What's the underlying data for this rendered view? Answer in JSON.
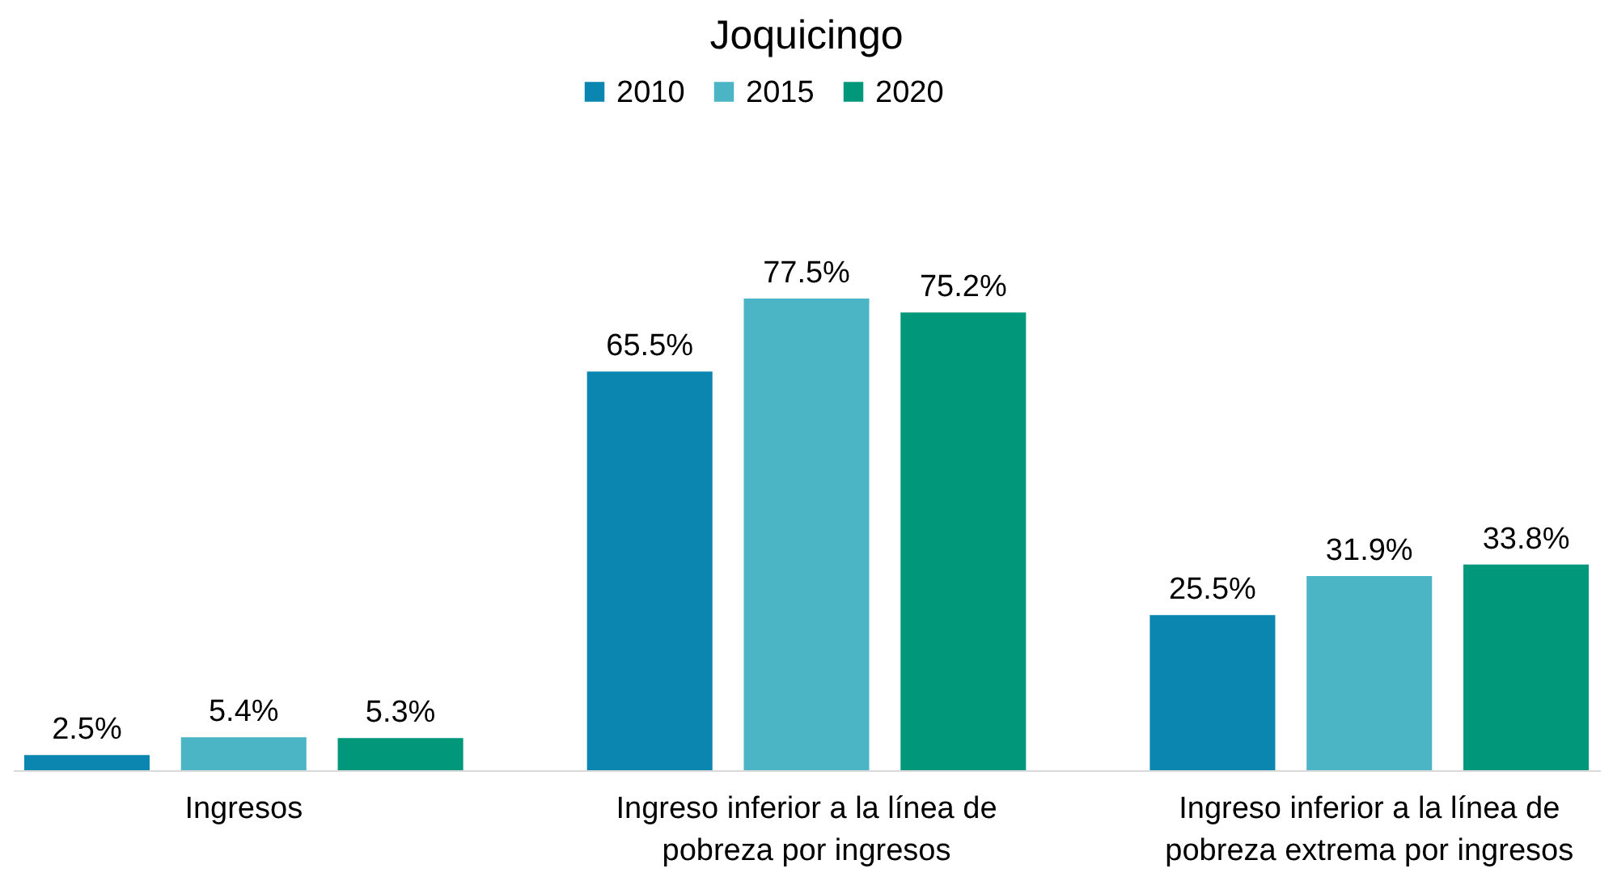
{
  "chart_data": {
    "type": "bar",
    "title": "Joquicingo",
    "categories": [
      "Ingresos",
      "Ingreso inferior a la línea de pobreza por ingresos",
      "Ingreso inferior a la línea de pobreza extrema por ingresos"
    ],
    "series": [
      {
        "name": "2010",
        "color": "#0b86b0",
        "values": [
          2.5,
          65.5,
          25.5
        ],
        "value_labels": [
          "2.5%",
          "65.5%",
          "25.5%"
        ]
      },
      {
        "name": "2015",
        "color": "#4bb5c5",
        "values": [
          5.4,
          77.5,
          31.9
        ],
        "value_labels": [
          "5.4%",
          "77.5%",
          "31.9%"
        ]
      },
      {
        "name": "2020",
        "color": "#00977a",
        "values": [
          5.3,
          75.2,
          33.8
        ],
        "value_labels": [
          "5.3%",
          "75.2%",
          "33.8%"
        ]
      }
    ],
    "legend": "top"
  }
}
